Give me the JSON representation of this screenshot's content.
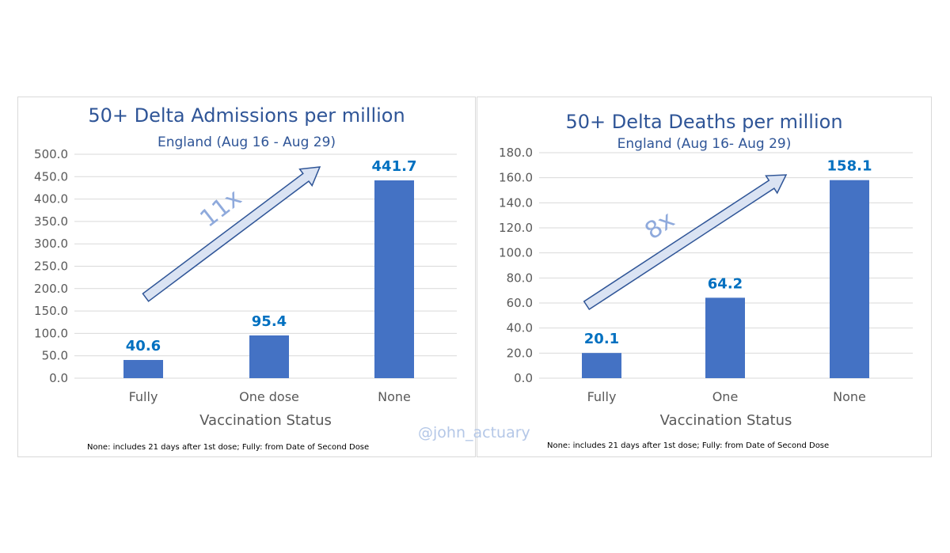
{
  "watermark": "@john_actuary",
  "colors": {
    "bar": "#4472c4",
    "title": "#2f5597",
    "data_label": "#0070c0",
    "arrow_fill": "#dae3f3",
    "arrow_stroke": "#2f5597"
  },
  "chart_data": [
    {
      "type": "bar",
      "title": "50+ Delta Admissions per million",
      "subtitle": "England  (Aug 16 - Aug 29)",
      "xlabel": "Vaccination Status",
      "ylabel": "",
      "categories": [
        "Fully",
        "One dose",
        "None"
      ],
      "values": [
        40.6,
        95.4,
        441.7
      ],
      "data_labels": [
        "40.6",
        "95.4",
        "441.7"
      ],
      "ylim": [
        0,
        500
      ],
      "yticks": [
        "0.0",
        "50.0",
        "100.0",
        "150.0",
        "200.0",
        "250.0",
        "300.0",
        "350.0",
        "400.0",
        "450.0",
        "500.0"
      ],
      "grid": true,
      "annotation": "11x",
      "footnote": "None: includes 21 days after 1st dose; Fully: from Date of Second Dose"
    },
    {
      "type": "bar",
      "title": "50+ Delta Deaths per million",
      "subtitle": "England (Aug 16- Aug 29)",
      "xlabel": "Vaccination Status",
      "ylabel": "",
      "categories": [
        "Fully",
        "One",
        "None"
      ],
      "values": [
        20.1,
        64.2,
        158.1
      ],
      "data_labels": [
        "20.1",
        "64.2",
        "158.1"
      ],
      "ylim": [
        0,
        180
      ],
      "yticks": [
        "0.0",
        "20.0",
        "40.0",
        "60.0",
        "80.0",
        "100.0",
        "120.0",
        "140.0",
        "160.0",
        "180.0"
      ],
      "grid": true,
      "annotation": "8x",
      "footnote": "None: includes 21 days after 1st dose; Fully: from Date of Second Dose"
    }
  ]
}
